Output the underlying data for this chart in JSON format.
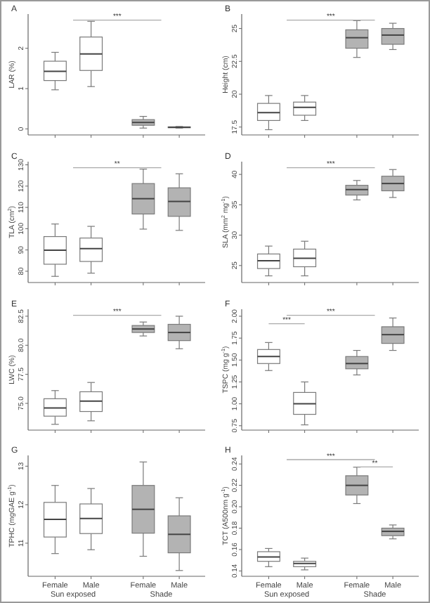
{
  "chart_data": [
    {
      "type": "box",
      "title": "A",
      "ylabel": "LAR (%)",
      "categories": [
        null,
        null
      ],
      "tick_labels": "y",
      "ylim": [
        -0.15,
        2.85
      ],
      "yticks": [
        0,
        1,
        2
      ],
      "annotations": [
        "***"
      ],
      "series": [
        {
          "colors": [
            "#ffffff",
            "#b3b3b3"
          ],
          "boxes": [
            {
              "low": 0.97,
              "q1": 1.2,
              "median": 1.43,
              "q3": 1.68,
              "high": 1.9
            },
            {
              "low": 0.02,
              "q1": 0.09,
              "median": 0.16,
              "q3": 0.23,
              "high": 0.31
            }
          ]
        },
        {
          "colors": [
            "#ffffff",
            "#b3b3b3"
          ],
          "boxes": [
            {
              "low": 1.05,
              "q1": 1.45,
              "median": 1.86,
              "q3": 2.28,
              "high": 2.67
            },
            {
              "low": 0.02,
              "q1": 0.03,
              "median": 0.04,
              "q3": 0.05,
              "high": 0.06
            }
          ]
        }
      ]
    },
    {
      "type": "box",
      "title": "B",
      "ylabel": "Height (cm)",
      "categories": [
        null,
        null
      ],
      "tick_labels": "y",
      "ylim": [
        16.9,
        26.1
      ],
      "yticks": [
        17.5,
        20,
        22.5,
        25
      ],
      "annotations": [
        "***"
      ],
      "series": [
        {
          "colors": [
            "#ffffff",
            "#b3b3b3"
          ],
          "boxes": [
            {
              "low": 17.3,
              "q1": 18.0,
              "median": 18.6,
              "q3": 19.3,
              "high": 19.9
            },
            {
              "low": 22.8,
              "q1": 23.5,
              "median": 24.3,
              "q3": 24.9,
              "high": 25.6
            }
          ]
        },
        {
          "colors": [
            "#ffffff",
            "#b3b3b3"
          ],
          "boxes": [
            {
              "low": 18.0,
              "q1": 18.4,
              "median": 19.0,
              "q3": 19.4,
              "high": 19.9
            },
            {
              "low": 23.4,
              "q1": 23.8,
              "median": 24.5,
              "q3": 25.0,
              "high": 25.4
            }
          ]
        }
      ]
    },
    {
      "type": "box",
      "title": "C",
      "ylabel": "TLA (cm$^{2}$)",
      "categories": [
        null,
        null
      ],
      "tick_labels": "y",
      "ylim": [
        74.7,
        131.5
      ],
      "yticks": [
        80,
        90,
        100,
        110,
        120,
        130
      ],
      "annotations": [
        "**"
      ],
      "series": [
        {
          "colors": [
            "#ffffff",
            "#b3b3b3"
          ],
          "boxes": [
            {
              "low": 77.6,
              "q1": 83.3,
              "median": 89.9,
              "q3": 96.3,
              "high": 102.2
            },
            {
              "low": 99.8,
              "q1": 106.9,
              "median": 114.1,
              "q3": 121.2,
              "high": 128
            }
          ]
        },
        {
          "colors": [
            "#ffffff",
            "#b3b3b3"
          ],
          "boxes": [
            {
              "low": 79.1,
              "q1": 84.6,
              "median": 90.6,
              "q3": 95.6,
              "high": 101.1
            },
            {
              "low": 99.2,
              "q1": 105.8,
              "median": 112.8,
              "q3": 119.2,
              "high": 125.8
            }
          ]
        }
      ]
    },
    {
      "type": "box",
      "title": "D",
      "ylabel": "SLA (mm$^{2}$ mg$^{-1}$)",
      "categories": [
        null,
        null
      ],
      "tick_labels": "y",
      "ylim": [
        22.2,
        42.1
      ],
      "yticks": [
        25,
        30,
        35,
        40
      ],
      "annotations": [
        "***"
      ],
      "series": [
        {
          "colors": [
            "#ffffff",
            "#b3b3b3"
          ],
          "boxes": [
            {
              "low": 23.3,
              "q1": 24.5,
              "median": 25.8,
              "q3": 26.9,
              "high": 28.2
            },
            {
              "low": 35.8,
              "q1": 36.6,
              "median": 37.5,
              "q3": 38.2,
              "high": 39.0
            }
          ]
        },
        {
          "colors": [
            "#ffffff",
            "#b3b3b3"
          ],
          "boxes": [
            {
              "low": 23.3,
              "q1": 24.8,
              "median": 26.2,
              "q3": 27.7,
              "high": 29.0
            },
            {
              "low": 36.2,
              "q1": 37.3,
              "median": 38.5,
              "q3": 39.7,
              "high": 40.8
            }
          ]
        }
      ]
    },
    {
      "type": "box",
      "title": "E",
      "ylabel": "LWC (%)",
      "categories": [
        null,
        null
      ],
      "tick_labels": "y",
      "ylim": [
        72.7,
        83.1
      ],
      "yticks": [
        {
          "value": 75,
          "label": "75.0"
        },
        77.5,
        {
          "value": 80,
          "label": "80.0"
        },
        82.5
      ],
      "annotations": [
        "***"
      ],
      "series": [
        {
          "colors": [
            "#ffffff",
            "#b3b3b3"
          ],
          "boxes": [
            {
              "low": 73.2,
              "q1": 73.9,
              "median": 74.6,
              "q3": 75.4,
              "high": 76.1
            },
            {
              "low": 80.8,
              "q1": 81.1,
              "median": 81.4,
              "q3": 81.7,
              "high": 82.0
            }
          ]
        },
        {
          "colors": [
            "#ffffff",
            "#b3b3b3"
          ],
          "boxes": [
            {
              "low": 73.5,
              "q1": 74.3,
              "median": 75.2,
              "q3": 76.0,
              "high": 76.8
            },
            {
              "low": 79.7,
              "q1": 80.4,
              "median": 81.1,
              "q3": 81.8,
              "high": 82.5
            }
          ]
        }
      ]
    },
    {
      "type": "box",
      "title": "F",
      "ylabel": "TSPC (mg g$^{-1}$)",
      "categories": [
        null,
        null
      ],
      "tick_labels": "y",
      "ylim": [
        0.7,
        2.08
      ],
      "yticks": [
        0.75,
        {
          "value": 1,
          "label": "1.00"
        },
        1.25,
        {
          "value": 1.5,
          "label": "1.50"
        },
        1.75,
        {
          "value": 2,
          "label": "2.00"
        }
      ],
      "annotations": [
        "***",
        "***"
      ],
      "series": [
        {
          "colors": [
            "#ffffff",
            "#b3b3b3"
          ],
          "boxes": [
            {
              "low": 1.38,
              "q1": 1.46,
              "median": 1.54,
              "q3": 1.62,
              "high": 1.7
            },
            {
              "low": 1.33,
              "q1": 1.4,
              "median": 1.46,
              "q3": 1.54,
              "high": 1.61
            }
          ]
        },
        {
          "colors": [
            "#ffffff",
            "#b3b3b3"
          ],
          "boxes": [
            {
              "low": 0.76,
              "q1": 0.88,
              "median": 1.0,
              "q3": 1.13,
              "high": 1.25
            },
            {
              "low": 1.61,
              "q1": 1.69,
              "median": 1.79,
              "q3": 1.88,
              "high": 1.98
            }
          ]
        }
      ]
    },
    {
      "type": "box",
      "title": "G",
      "ylabel": "TPHC (mgGAE g$^{-1}$)",
      "categories": [
        "Sun exposed",
        "Shade"
      ],
      "ylim": [
        10.14,
        13.28
      ],
      "yticks": [
        11,
        12,
        13
      ],
      "annotations": [
        "Female",
        "Male",
        "Female",
        "Male"
      ],
      "series": [
        {
          "colors": [
            "#ffffff",
            "#b3b3b3"
          ],
          "boxes": [
            {
              "low": 10.73,
              "q1": 11.16,
              "median": 11.62,
              "q3": 12.06,
              "high": 12.5
            },
            {
              "low": 10.66,
              "q1": 11.26,
              "median": 11.88,
              "q3": 12.5,
              "high": 13.11
            }
          ]
        },
        {
          "colors": [
            "#ffffff",
            "#b3b3b3"
          ],
          "boxes": [
            {
              "low": 10.83,
              "q1": 11.25,
              "median": 11.64,
              "q3": 12.02,
              "high": 12.42
            },
            {
              "low": 10.29,
              "q1": 10.75,
              "median": 11.23,
              "q3": 11.71,
              "high": 12.18
            }
          ]
        }
      ]
    },
    {
      "type": "box",
      "title": "H",
      "ylabel": "TCT (A500nm g$^{-1}$)",
      "categories": [
        "Sun exposed",
        "Shade"
      ],
      "ylim": [
        0.135,
        0.248
      ],
      "yticks": [
        0.14,
        0.16,
        0.18,
        {
          "value": 0.2,
          "label": "0.20"
        },
        0.22,
        0.24
      ],
      "annotations": [
        "***",
        "**",
        "Female",
        "Male",
        "Female",
        "Male"
      ],
      "series": [
        {
          "colors": [
            "#ffffff",
            "#b3b3b3"
          ],
          "boxes": [
            {
              "low": 0.144,
              "q1": 0.149,
              "median": 0.153,
              "q3": 0.158,
              "high": 0.161
            },
            {
              "low": 0.203,
              "q1": 0.211,
              "median": 0.22,
              "q3": 0.229,
              "high": 0.237
            }
          ]
        },
        {
          "colors": [
            "#ffffff",
            "#b3b3b3"
          ],
          "boxes": [
            {
              "low": 0.141,
              "q1": 0.144,
              "median": 0.147,
              "q3": 0.149,
              "high": 0.152
            },
            {
              "low": 0.17,
              "q1": 0.173,
              "median": 0.177,
              "q3": 0.18,
              "high": 0.183
            }
          ]
        }
      ]
    }
  ]
}
